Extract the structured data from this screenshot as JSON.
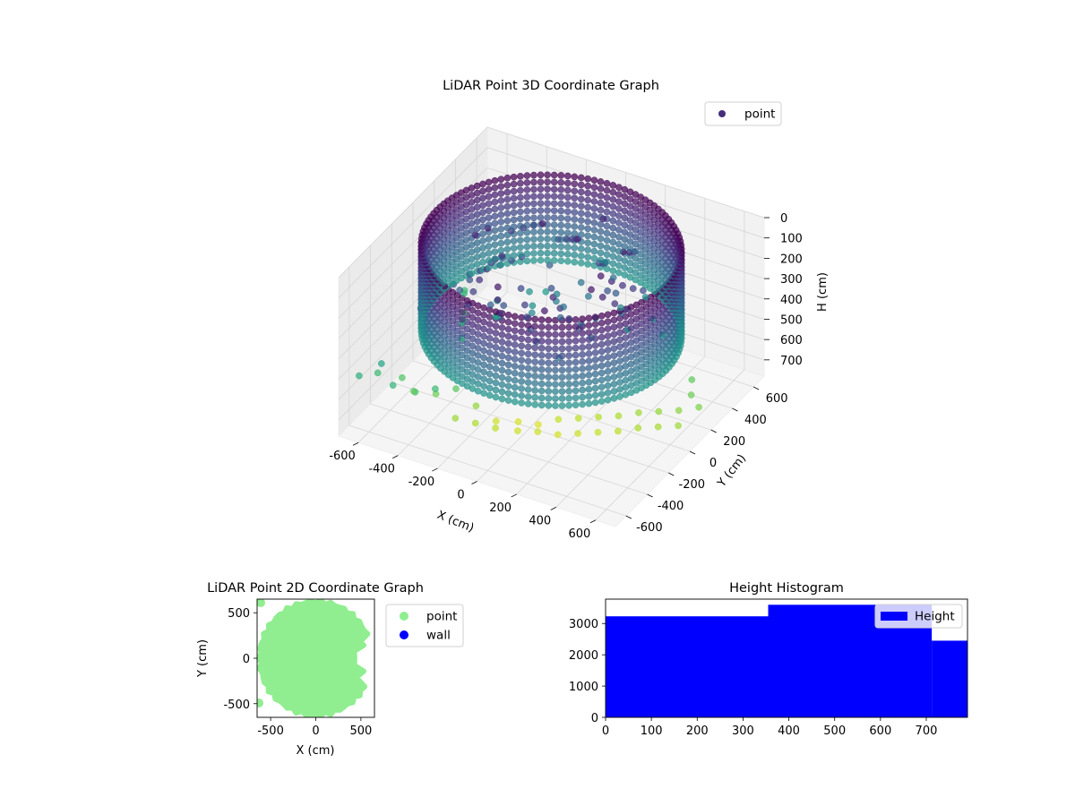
{
  "chart_data": [
    {
      "type": "scatter",
      "projection": "3d",
      "title": "LiDAR Point 3D Coordinate Graph",
      "xlabel": "X (cm)",
      "ylabel": "Y (cm)",
      "zlabel": "H (cm)",
      "xlim": [
        -700,
        700
      ],
      "ylim": [
        -700,
        700
      ],
      "zlim": [
        0,
        780
      ],
      "z_axis_inverted": true,
      "x_ticks": [
        "-600",
        "-400",
        "-200",
        "0",
        "200",
        "400",
        "600"
      ],
      "y_ticks": [
        "-600",
        "-400",
        "-200",
        "0",
        "200",
        "400",
        "600"
      ],
      "z_ticks": [
        "0",
        "100",
        "200",
        "300",
        "400",
        "500",
        "600",
        "700"
      ],
      "colormap": "viridis",
      "legend": {
        "position": "top-right",
        "entries": [
          {
            "label": "point",
            "color": "#472d7b"
          }
        ]
      },
      "grid": true,
      "series": [
        {
          "name": "point",
          "description_shape": "cylindrical wall ring of radius ~580 cm spanning heights ~0-420 cm, plus sparse floor points up to ~780 cm",
          "ring_radius": 580,
          "ring_height": [
            0,
            420
          ],
          "scatter_points": [
            [
              -650,
              -600,
              520
            ],
            [
              -620,
              -480,
              560
            ],
            [
              -580,
              -520,
              480
            ],
            [
              -540,
              -400,
              600
            ],
            [
              -500,
              -560,
              540
            ],
            [
              -460,
              -440,
              620
            ],
            [
              -420,
              -500,
              580
            ],
            [
              -380,
              -380,
              640
            ],
            [
              -340,
              -460,
              560
            ],
            [
              -300,
              -340,
              610
            ],
            [
              -260,
              -420,
              700
            ],
            [
              -220,
              -300,
              690
            ],
            [
              -180,
              -380,
              720
            ],
            [
              -140,
              -260,
              760
            ],
            [
              -100,
              -340,
              740
            ],
            [
              -60,
              -200,
              770
            ],
            [
              -20,
              -280,
              760
            ],
            [
              20,
              -160,
              780
            ],
            [
              60,
              -240,
              760
            ],
            [
              100,
              -120,
              750
            ],
            [
              140,
              -200,
              770
            ],
            [
              180,
              -80,
              740
            ],
            [
              220,
              -160,
              760
            ],
            [
              260,
              -40,
              730
            ],
            [
              300,
              -120,
              750
            ],
            [
              340,
              0,
              720
            ],
            [
              380,
              -80,
              740
            ],
            [
              420,
              40,
              700
            ],
            [
              460,
              -40,
              720
            ],
            [
              500,
              80,
              690
            ],
            [
              540,
              0,
              710
            ],
            [
              580,
              120,
              680
            ],
            [
              620,
              40,
              700
            ],
            [
              660,
              160,
              660
            ],
            [
              600,
              200,
              640
            ],
            [
              560,
              280,
              620
            ],
            [
              -600,
              300,
              560
            ],
            [
              -560,
              220,
              520
            ],
            [
              -520,
              140,
              560
            ],
            [
              -480,
              60,
              540
            ],
            [
              -440,
              -20,
              500
            ],
            [
              -400,
              -100,
              520
            ],
            [
              -360,
              160,
              460
            ],
            [
              -320,
              80,
              480
            ],
            [
              -280,
              0,
              430
            ],
            [
              -240,
              240,
              420
            ],
            [
              -200,
              320,
              450
            ],
            [
              -160,
              120,
              400
            ],
            [
              -120,
              40,
              380
            ],
            [
              -80,
              200,
              360
            ],
            [
              -40,
              120,
              340
            ],
            [
              0,
              280,
              320
            ],
            [
              40,
              40,
              300
            ],
            [
              80,
              200,
              320
            ],
            [
              120,
              360,
              300
            ],
            [
              160,
              120,
              360
            ],
            [
              200,
              280,
              380
            ],
            [
              240,
              440,
              400
            ],
            [
              280,
              200,
              420
            ],
            [
              320,
              360,
              440
            ],
            [
              -500,
              -300,
              300
            ],
            [
              -460,
              -220,
              260
            ],
            [
              -420,
              -140,
              240
            ],
            [
              -380,
              -60,
              220
            ],
            [
              -300,
              100,
              200
            ],
            [
              -100,
              -100,
              180
            ],
            [
              100,
              -100,
              260
            ],
            [
              300,
              100,
              280
            ],
            [
              -200,
              -200,
              240
            ],
            [
              0,
              0,
              200
            ],
            [
              200,
              -300,
              320
            ],
            [
              400,
              300,
              460
            ]
          ]
        }
      ]
    },
    {
      "type": "scatter",
      "title": "LiDAR Point 2D Coordinate Graph",
      "xlabel": "X (cm)",
      "ylabel": "Y (cm)",
      "xlim": [
        -650,
        650
      ],
      "ylim": [
        -650,
        650
      ],
      "x_ticks": [
        "-500",
        "0",
        "500"
      ],
      "y_ticks": [
        "-500",
        "0",
        "500"
      ],
      "legend": {
        "position": "outside-right",
        "entries": [
          {
            "label": "point",
            "color": "#90ee90"
          },
          {
            "label": "wall",
            "color": "#0000ff"
          }
        ]
      },
      "series": [
        {
          "name": "point",
          "color": "#90ee90",
          "region": "filled disk radius ~620 cm with notch on right side"
        },
        {
          "name": "wall",
          "color": "#0000ff",
          "points": []
        }
      ]
    },
    {
      "type": "bar",
      "subtype": "histogram",
      "title": "Height Histogram",
      "xlim": [
        0,
        790
      ],
      "ylim": [
        0,
        3780
      ],
      "x_ticks": [
        "0",
        "100",
        "200",
        "300",
        "400",
        "500",
        "600",
        "700"
      ],
      "y_ticks": [
        "0",
        "1000",
        "2000",
        "3000"
      ],
      "legend": {
        "position": "top-right",
        "entries": [
          {
            "label": "Height",
            "color": "#0000ff"
          }
        ]
      },
      "bins": [
        {
          "x0": 0,
          "x1": 355,
          "count": 3230
        },
        {
          "x0": 355,
          "x1": 712,
          "count": 3600
        },
        {
          "x0": 712,
          "x1": 790,
          "count": 2450
        }
      ],
      "series": [
        {
          "name": "Height",
          "color": "#0000ff"
        }
      ]
    }
  ]
}
